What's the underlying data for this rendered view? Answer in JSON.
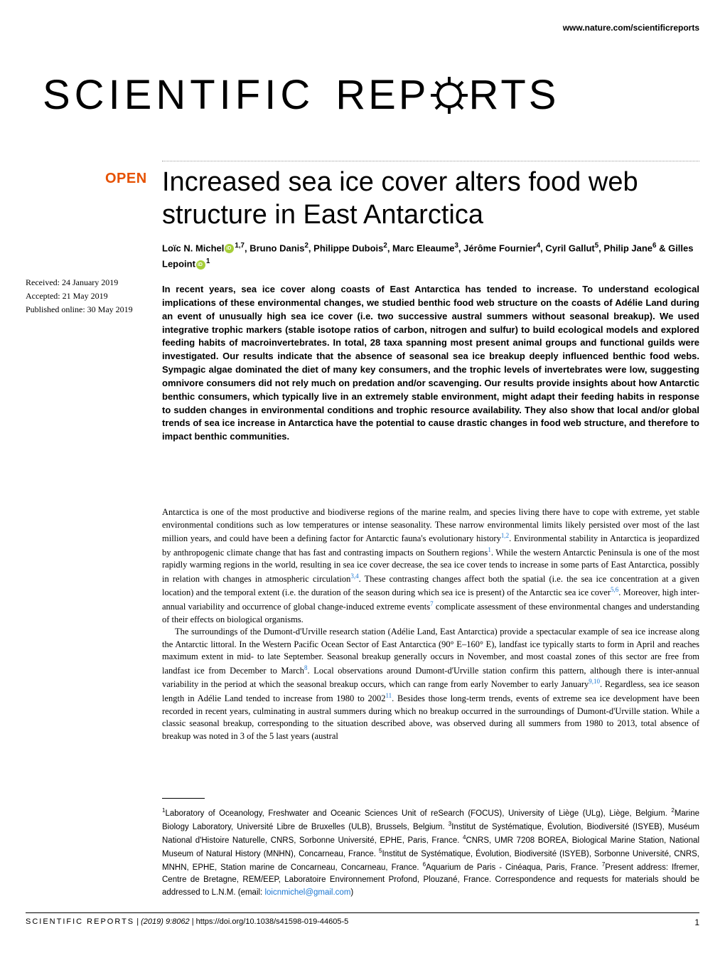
{
  "header": {
    "url": "www.nature.com/scientificreports"
  },
  "logo": {
    "part1": "SCIENTIFIC",
    "part2_a": "REP",
    "part2_b": "RTS",
    "gear_color": "#000000"
  },
  "badge": {
    "open": "OPEN"
  },
  "article": {
    "title": "Increased sea ice cover alters food web structure in East Antarctica",
    "authors_html": "Loïc N. Michel{ORCID}<sup>1,7</sup>, Bruno Danis<sup>2</sup>, Philippe Dubois<sup>2</sup>, Marc Eleaume<sup>3</sup>, Jérôme Fournier<sup>4</sup>, Cyril Gallut<sup>5</sup>, Philip Jane<sup>6</sup> & Gilles Lepoint{ORCID}<sup>1</sup>"
  },
  "dates": {
    "received": "Received: 24 January 2019",
    "accepted": "Accepted: 21 May 2019",
    "published": "Published online: 30 May 2019"
  },
  "abstract": {
    "text": "In recent years, sea ice cover along coasts of East Antarctica has tended to increase. To understand ecological implications of these environmental changes, we studied benthic food web structure on the coasts of Adélie Land during an event of unusually high sea ice cover (i.e. two successive austral summers without seasonal breakup). We used integrative trophic markers (stable isotope ratios of carbon, nitrogen and sulfur) to build ecological models and explored feeding habits of macroinvertebrates. In total, 28 taxa spanning most present animal groups and functional guilds were investigated. Our results indicate that the absence of seasonal sea ice breakup deeply influenced benthic food webs. Sympagic algae dominated the diet of many key consumers, and the trophic levels of invertebrates were low, suggesting omnivore consumers did not rely much on predation and/or scavenging. Our results provide insights about how Antarctic benthic consumers, which typically live in an extremely stable environment, might adapt their feeding habits in response to sudden changes in environmental conditions and trophic resource availability. They also show that local and/or global trends of sea ice increase in Antarctica have the potential to cause drastic changes in food web structure, and therefore to impact benthic communities."
  },
  "body": {
    "para1": "Antarctica is one of the most productive and biodiverse regions of the marine realm, and species living there have to cope with extreme, yet stable environmental conditions such as low temperatures or intense seasonality. These narrow environmental limits likely persisted over most of the last million years, and could have been a defining factor for Antarctic fauna's evolutionary history{R12}. Environmental stability in Antarctica is jeopardized by anthropogenic climate change that has fast and contrasting impacts on Southern regions{R1}. While the western Antarctic Peninsula is one of the most rapidly warming regions in the world, resulting in sea ice cover decrease, the sea ice cover tends to increase in some parts of East Antarctica, possibly in relation with changes in atmospheric circulation{R34}. These contrasting changes affect both the spatial (i.e. the sea ice concentration at a given location) and the temporal extent (i.e. the duration of the season during which sea ice is present) of the Antarctic sea ice cover{R56}. Moreover, high inter-annual variability and occurrence of global change-induced extreme events{R7} complicate assessment of these environmental changes and understanding of their effects on biological organisms.",
    "para2": "The surroundings of the Dumont-d'Urville research station (Adélie Land, East Antarctica) provide a spectacular example of sea ice increase along the Antarctic littoral. In the Western Pacific Ocean Sector of East Antarctica (90° E–160° E), landfast ice typically starts to form in April and reaches maximum extent in mid- to late September. Seasonal breakup generally occurs in November, and most coastal zones of this sector are free from landfast ice from December to March{R8}. Local observations around Dumont-d'Urville station confirm this pattern, although there is inter-annual variability in the period at which the seasonal breakup occurs, which can range from early November to early January{R910}. Regardless, sea ice season length in Adélie Land tended to increase from 1980 to 2002{R11}. Besides those long-term trends, events of extreme sea ice development have been recorded in recent years, culminating in austral summers during which no breakup occurred in the surroundings of Dumont-d'Urville station. While a classic seasonal breakup, corresponding to the situation described above, was observed during all summers from 1980 to 2013, total absence of breakup was noted in 3 of the 5 last years (austral"
  },
  "refs": {
    "r12": "1,2",
    "r1": "1",
    "r34": "3,4",
    "r56": "5,6",
    "r7": "7",
    "r8": "8",
    "r910": "9,10",
    "r11": "11"
  },
  "affiliations": {
    "text_html": "<sup>1</sup>Laboratory of Oceanology, Freshwater and Oceanic Sciences Unit of reSearch (FOCUS), University of Liège (ULg), Liège, Belgium. <sup>2</sup>Marine Biology Laboratory, Université Libre de Bruxelles (ULB), Brussels, Belgium. <sup>3</sup>Institut de Systématique, Évolution, Biodiversité (ISYEB), Muséum National d'Histoire Naturelle, CNRS, Sorbonne Université, EPHE, Paris, France. <sup>4</sup>CNRS, UMR 7208 BOREA, Biological Marine Station, National Museum of Natural History (MNHN), Concarneau, France. <sup>5</sup>Institut de Systématique, Évolution, Biodiversité (ISYEB), Sorbonne Université, CNRS, MNHN, EPHE, Station marine de Concarneau, Concarneau, France. <sup>6</sup>Aquarium de Paris - Cinéaqua, Paris, France. <sup>7</sup>Present address: Ifremer, Centre de Bretagne, REM/EEP, Laboratoire Environnement Profond, Plouzané, France. Correspondence and requests for materials should be addressed to L.N.M. (email: ",
    "email": "loicnmichel@gmail.com",
    "close": ")"
  },
  "footer": {
    "journal": "SCIENTIFIC REPORTS",
    "sep": " | ",
    "citation": "(2019) 9:8062 ",
    "doi": " | https://doi.org/10.1038/s41598-019-44605-5",
    "page": "1"
  },
  "colors": {
    "open_badge": "#e65100",
    "link": "#1976d2",
    "orcid": "#a6ce39",
    "dotted": "#999999"
  }
}
